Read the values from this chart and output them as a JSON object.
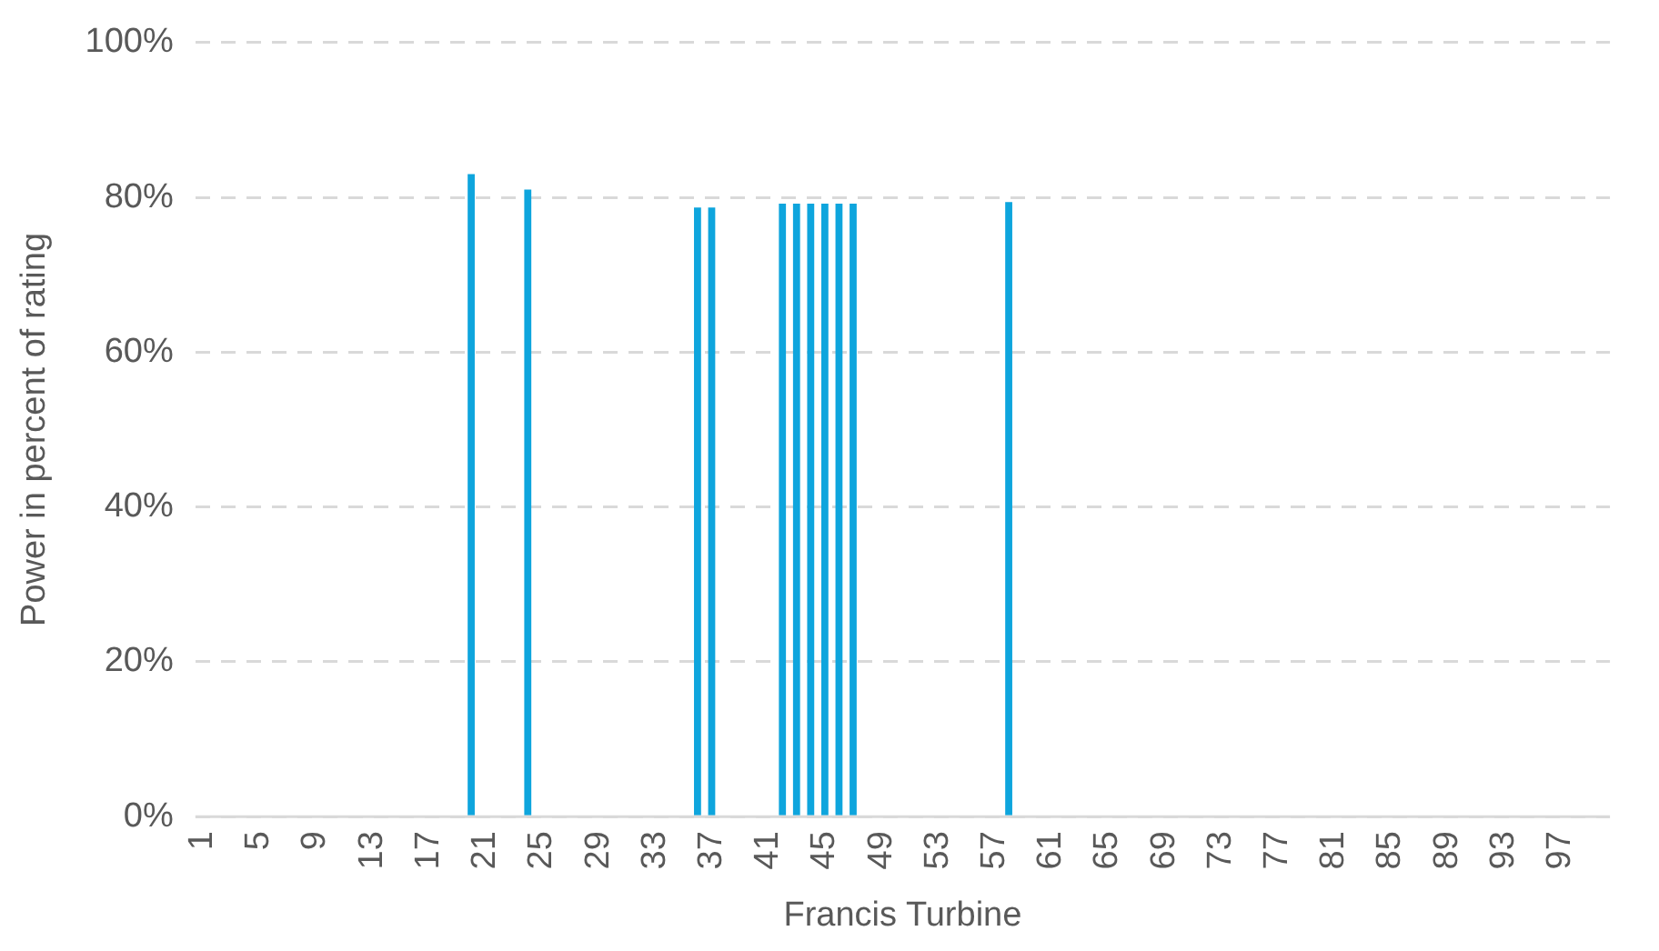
{
  "chart_data": {
    "type": "bar",
    "xlabel": "Francis Turbine",
    "ylabel": "Power in percent of rating",
    "categories": [
      "1",
      null,
      null,
      null,
      "5",
      null,
      null,
      null,
      "9",
      null,
      null,
      null,
      "13",
      null,
      null,
      null,
      "17",
      null,
      null,
      null,
      "21",
      null,
      null,
      null,
      "25",
      null,
      null,
      null,
      "29",
      null,
      null,
      null,
      "33",
      null,
      null,
      null,
      "37",
      null,
      null,
      null,
      "41",
      null,
      null,
      null,
      "45",
      null,
      null,
      null,
      "49",
      null,
      null,
      null,
      "53",
      null,
      null,
      null,
      "57",
      null,
      null,
      null,
      "61",
      null,
      null,
      null,
      "65",
      null,
      null,
      null,
      "69",
      null,
      null,
      null,
      "73",
      null,
      null,
      null,
      "77",
      null,
      null,
      null,
      "81",
      null,
      null,
      null,
      "85",
      null,
      null,
      null,
      "89",
      null,
      null,
      null,
      "93",
      null,
      null,
      null,
      "97",
      null,
      null,
      null
    ],
    "values": [
      null,
      null,
      null,
      null,
      null,
      null,
      null,
      null,
      null,
      null,
      null,
      null,
      null,
      null,
      null,
      null,
      null,
      null,
      null,
      83,
      null,
      null,
      null,
      81,
      null,
      null,
      null,
      null,
      null,
      null,
      null,
      null,
      null,
      null,
      null,
      78.7,
      78.7,
      null,
      null,
      null,
      null,
      79.2,
      79.2,
      79.2,
      79.2,
      79.2,
      79.2,
      null,
      null,
      null,
      null,
      null,
      null,
      null,
      null,
      null,
      null,
      79.4,
      null,
      null,
      null,
      null,
      null,
      null,
      null,
      null,
      null,
      null,
      null,
      null,
      null,
      null,
      null,
      null,
      null,
      null,
      null,
      null,
      null,
      null,
      null,
      null,
      null,
      null,
      null,
      null,
      null,
      null,
      null,
      null,
      null,
      null,
      null,
      null,
      null,
      null,
      null,
      null,
      null,
      null
    ],
    "color": "#0ea5dd",
    "ylim": [
      0,
      100
    ],
    "yticks": [
      {
        "value": 0,
        "label": "0%"
      },
      {
        "value": 20,
        "label": "20%"
      },
      {
        "value": 40,
        "label": "40%"
      },
      {
        "value": 60,
        "label": "60%"
      },
      {
        "value": 80,
        "label": "80%"
      },
      {
        "value": 100,
        "label": "100%"
      }
    ],
    "grid": "y",
    "legend": false
  }
}
